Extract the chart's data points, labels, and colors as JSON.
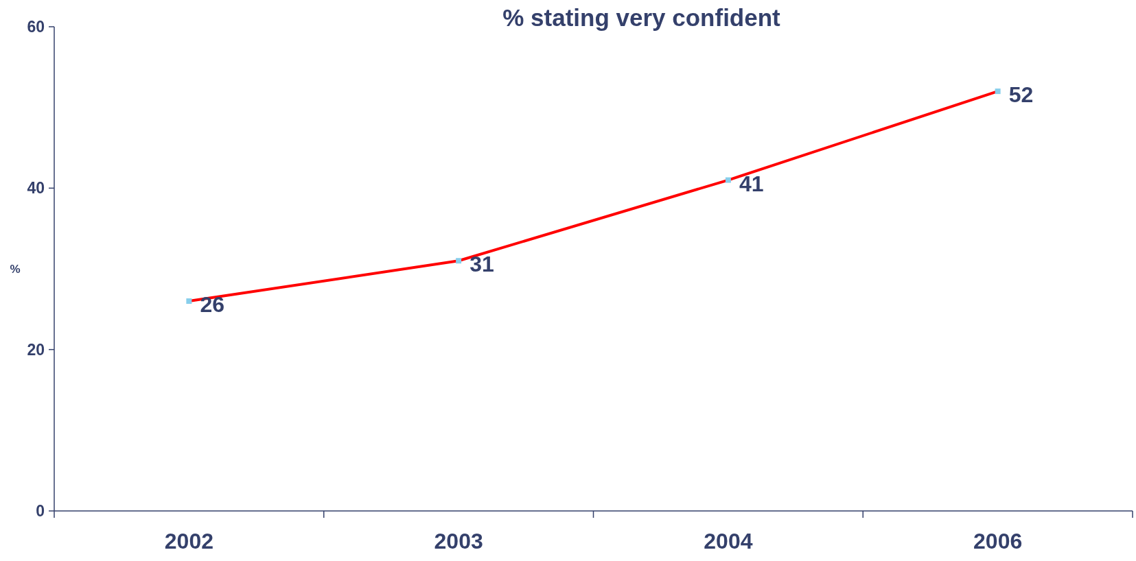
{
  "chart_data": {
    "type": "line",
    "title": "% stating very confident",
    "ylabel": "%",
    "categories": [
      "2002",
      "2003",
      "2004",
      "2006"
    ],
    "series": [
      {
        "color": "#ff0000",
        "values": [
          26,
          31,
          41,
          52
        ]
      }
    ],
    "ylim": [
      0,
      60
    ],
    "yticks": [
      0,
      20,
      40,
      60
    ],
    "grid": false,
    "marker": "square",
    "line_style": "solid",
    "data_labels": true
  }
}
